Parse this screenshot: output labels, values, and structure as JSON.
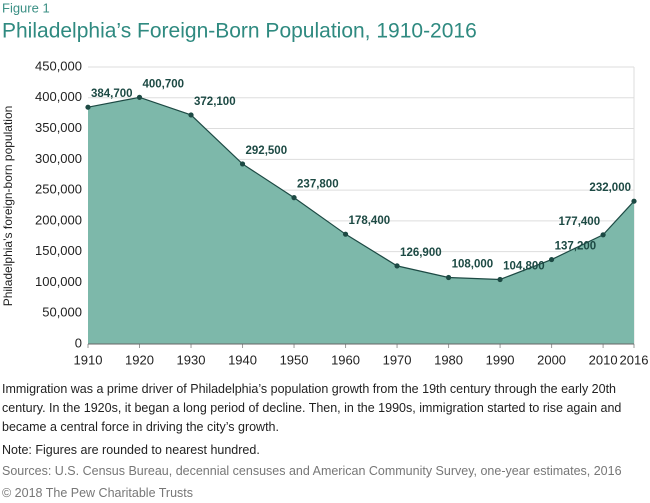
{
  "chart_data": {
    "type": "area",
    "figure_label": "Figure 1",
    "title": "Philadelphia’s Foreign-Born Population, 1910-2016",
    "y_label": "Philadelphia’s foreign-born population",
    "x": [
      1910,
      1920,
      1930,
      1940,
      1950,
      1960,
      1970,
      1980,
      1990,
      2000,
      2010,
      2016
    ],
    "values": [
      384700,
      400700,
      372100,
      292500,
      237800,
      178400,
      126900,
      108000,
      104800,
      137200,
      177400,
      232000
    ],
    "value_labels": [
      "384,700",
      "400,700",
      "372,100",
      "292,500",
      "237,800",
      "178,400",
      "126,900",
      "108,000",
      "104,800",
      "137,200",
      "177,400",
      "232,000"
    ],
    "color": "#7db8aa",
    "line_color": "#1d4a44",
    "xlim": [
      1910,
      2016
    ],
    "xticks": [
      1910,
      1920,
      1930,
      1940,
      1950,
      1960,
      1970,
      1980,
      1990,
      2000,
      2010,
      2016
    ],
    "ylim": [
      0,
      450000
    ],
    "yticks": [
      0,
      {
        "value": 50000,
        "label": "50,000"
      },
      {
        "value": 100000,
        "label": "100,000"
      },
      {
        "value": 150000,
        "label": "150,000"
      },
      {
        "value": 200000,
        "label": "200,000"
      },
      {
        "value": 250000,
        "label": "250,000"
      },
      {
        "value": 300000,
        "label": "300,000"
      },
      {
        "value": 350000,
        "label": "350,000"
      },
      {
        "value": 400000,
        "label": "400,000"
      },
      {
        "value": 450000,
        "label": "450,000"
      }
    ],
    "grid": true,
    "caption": "Immigration was a prime driver of Philadelphia’s population growth from the 19th century through the early 20th century. In the 1920s, it began a long period of decline. Then, in the 1990s, immigration started to rise again and became a central force in driving the city’s growth.",
    "note": "Note: Figures are rounded to nearest hundred.",
    "source": "Sources: U.S. Census Bureau, decennial censuses and American Community Survey, one-year estimates, 2016",
    "copyright": "© 2018 The Pew Charitable Trusts"
  }
}
